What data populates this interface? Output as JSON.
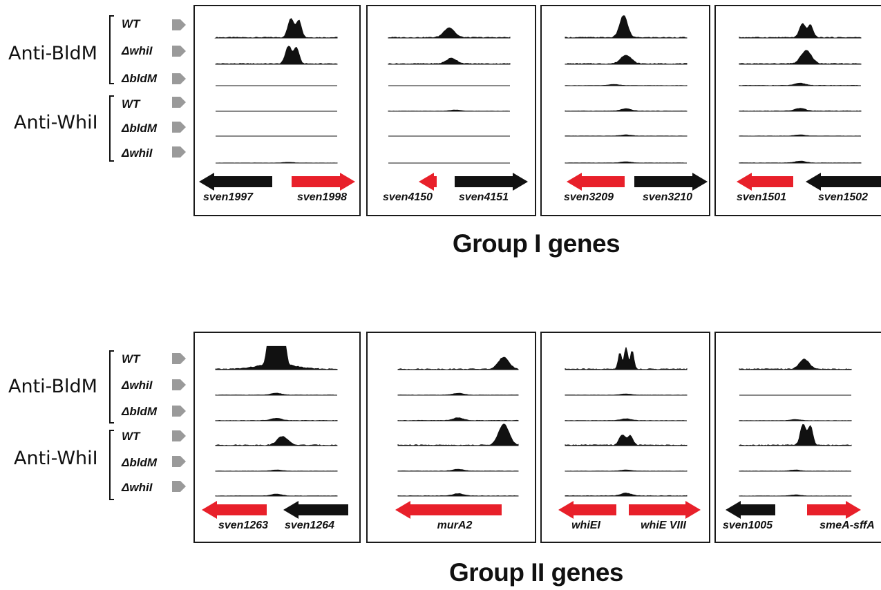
{
  "antibodies": [
    "Anti-BldM",
    "Anti-WhiI"
  ],
  "samples": [
    "WT",
    "ΔwhiI",
    "ΔbldM",
    "WT",
    "ΔbldM",
    "ΔwhiI"
  ],
  "colors": {
    "red_gene": "#e8202a",
    "black_gene": "#111111",
    "track": "#111111",
    "marker": "#9a9a9a"
  },
  "groups": [
    {
      "title": "Group I genes",
      "panels": [
        {
          "genes": [
            {
              "name": "sven1997",
              "dir": "left",
              "color": "black"
            },
            {
              "name": "sven1998",
              "dir": "right",
              "color": "red"
            }
          ],
          "tracks": [
            {
              "peak": 0.9,
              "pos": 0.65,
              "shape": "double"
            },
            {
              "peak": 0.85,
              "pos": 0.63,
              "shape": "double"
            },
            {
              "peak": 0.0
            },
            {
              "peak": 0.0
            },
            {
              "peak": 0.0
            },
            {
              "peak": 0.03,
              "pos": 0.6
            }
          ]
        },
        {
          "genes": [
            {
              "name": "sven4150",
              "dir": "left",
              "color": "red"
            },
            {
              "name": "sven4151",
              "dir": "right",
              "color": "black"
            }
          ],
          "tracks": [
            {
              "peak": 0.45,
              "pos": 0.5
            },
            {
              "peak": 0.25,
              "pos": 0.52
            },
            {
              "peak": 0.0
            },
            {
              "peak": 0.05,
              "pos": 0.55
            },
            {
              "peak": 0.0
            },
            {
              "peak": 0.0
            }
          ]
        },
        {
          "genes": [
            {
              "name": "sven3209",
              "dir": "left",
              "color": "red"
            },
            {
              "name": "sven3210",
              "dir": "right",
              "color": "black"
            }
          ],
          "tracks": [
            {
              "peak": 1.0,
              "pos": 0.48,
              "shape": "sharp"
            },
            {
              "peak": 0.4,
              "pos": 0.5
            },
            {
              "peak": 0.05,
              "pos": 0.4
            },
            {
              "peak": 0.1,
              "pos": 0.5
            },
            {
              "peak": 0.05,
              "pos": 0.5
            },
            {
              "peak": 0.05,
              "pos": 0.5
            }
          ]
        },
        {
          "genes": [
            {
              "name": "sven1501",
              "dir": "left",
              "color": "red"
            },
            {
              "name": "sven1502",
              "dir": "left",
              "color": "black"
            }
          ],
          "tracks": [
            {
              "peak": 0.65,
              "pos": 0.55,
              "shape": "double"
            },
            {
              "peak": 0.6,
              "pos": 0.55
            },
            {
              "peak": 0.1,
              "pos": 0.5
            },
            {
              "peak": 0.12,
              "pos": 0.5
            },
            {
              "peak": 0.05,
              "pos": 0.5
            },
            {
              "peak": 0.08,
              "pos": 0.5
            }
          ]
        }
      ]
    },
    {
      "title": "Group II genes",
      "panels": [
        {
          "genes": [
            {
              "name": "sven1263",
              "dir": "left",
              "color": "red"
            },
            {
              "name": "sven1264",
              "dir": "left",
              "color": "black"
            }
          ],
          "tracks": [
            {
              "peak": 1.0,
              "pos": 0.5,
              "shape": "flat"
            },
            {
              "peak": 0.08,
              "pos": 0.5
            },
            {
              "peak": 0.1,
              "pos": 0.5
            },
            {
              "peak": 0.4,
              "pos": 0.55
            },
            {
              "peak": 0.05,
              "pos": 0.5
            },
            {
              "peak": 0.08,
              "pos": 0.5
            }
          ]
        },
        {
          "genes": [
            {
              "name": "murA2",
              "dir": "left",
              "color": "red"
            }
          ],
          "tracks": [
            {
              "peak": 0.55,
              "pos": 0.88
            },
            {
              "peak": 0.08,
              "pos": 0.5
            },
            {
              "peak": 0.12,
              "pos": 0.5
            },
            {
              "peak": 0.95,
              "pos": 0.88
            },
            {
              "peak": 0.08,
              "pos": 0.5
            },
            {
              "peak": 0.1,
              "pos": 0.5
            }
          ]
        },
        {
          "genes": [
            {
              "name": "whiEI",
              "dir": "left",
              "color": "red"
            },
            {
              "name": "whiE VIII",
              "dir": "right",
              "color": "red"
            }
          ],
          "tracks": [
            {
              "peak": 1.0,
              "pos": 0.5,
              "shape": "triple"
            },
            {
              "peak": 0.05,
              "pos": 0.5
            },
            {
              "peak": 0.08,
              "pos": 0.5
            },
            {
              "peak": 0.5,
              "pos": 0.5,
              "shape": "double"
            },
            {
              "peak": 0.05,
              "pos": 0.5
            },
            {
              "peak": 0.12,
              "pos": 0.5
            }
          ]
        },
        {
          "genes": [
            {
              "name": "sven1005",
              "dir": "left",
              "color": "black"
            },
            {
              "name": "smeA-sffA",
              "dir": "right",
              "color": "red"
            }
          ],
          "tracks": [
            {
              "peak": 0.45,
              "pos": 0.58
            },
            {
              "peak": 0.0
            },
            {
              "peak": 0.05,
              "pos": 0.5
            },
            {
              "peak": 1.0,
              "pos": 0.6,
              "shape": "double"
            },
            {
              "peak": 0.05,
              "pos": 0.5
            },
            {
              "peak": 0.05,
              "pos": 0.5
            }
          ]
        }
      ]
    }
  ]
}
